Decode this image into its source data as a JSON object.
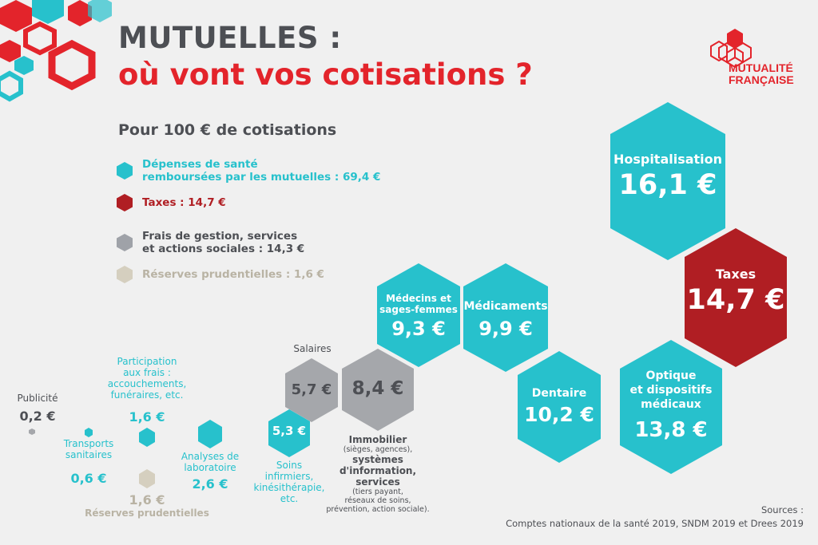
{
  "header": {
    "title_line1": "MUTUELLES :",
    "title_line2": "où vont vos cotisations ?",
    "subtitle": "Pour 100 € de cotisations"
  },
  "logo": {
    "line1": "MUTUALITÉ",
    "line2": "FRANÇAISE"
  },
  "legend": [
    {
      "line1": "Dépenses de santé",
      "line2": "remboursées par les mutuelles : 69,4 €",
      "color": "#27c1cc"
    },
    {
      "line1": "Taxes : 14,7 €",
      "color": "#b01e23"
    },
    {
      "line1": "Frais de gestion, services",
      "line2": "et actions sociales : 14,3 €",
      "color": "#9fa2a8"
    },
    {
      "line1": "Réserves prudentielles : 1,6 €",
      "color": "#d5cfbf"
    }
  ],
  "items": {
    "hospitalisation": {
      "label": "Hospitalisation",
      "value": "16,1 €"
    },
    "taxes": {
      "label": "Taxes",
      "value": "14,7 €"
    },
    "medecins": {
      "label1": "Médecins et",
      "label2": "sages-femmes",
      "value": "9,3 €"
    },
    "medicaments": {
      "label": "Médicaments",
      "value": "9,9 €"
    },
    "dentaire": {
      "label": "Dentaire",
      "value": "10,2 €"
    },
    "optique": {
      "label1": "Optique",
      "label2": "et dispositifs",
      "label3": "médicaux",
      "value": "13,8 €"
    },
    "salaires": {
      "label": "Salaires",
      "value": "5,7 €"
    },
    "immobilier": {
      "value": "8,4 €",
      "l1": "Immobilier",
      "l2": "(sièges, agences),",
      "l3": "systèmes",
      "l4": "d'information,",
      "l5": "services",
      "l6": "(tiers payant,",
      "l7": "réseaux de soins,",
      "l8": "prévention, action sociale)."
    },
    "soins": {
      "value": "5,3 €",
      "l1": "Soins",
      "l2": "infirmiers,",
      "l3": "kinésithérapie,",
      "l4": "etc."
    },
    "analyses": {
      "l1": "Analyses de",
      "l2": "laboratoire",
      "value": "2,6 €"
    },
    "participation": {
      "l1": "Participation",
      "l2": "aux frais :",
      "l3": "accouchements,",
      "l4": "funéraires, etc.",
      "value": "1,6 €"
    },
    "reserves": {
      "value": "1,6 €",
      "label": "Réserves prudentielles"
    },
    "transports": {
      "l1": "Transports",
      "l2": "sanitaires",
      "value": "0,6 €"
    },
    "publicite": {
      "label": "Publicité",
      "value": "0,2 €"
    }
  },
  "sources": {
    "label": "Sources :",
    "text": "Comptes nationaux de la santé 2019, SNDM 2019 et Drees 2019"
  }
}
